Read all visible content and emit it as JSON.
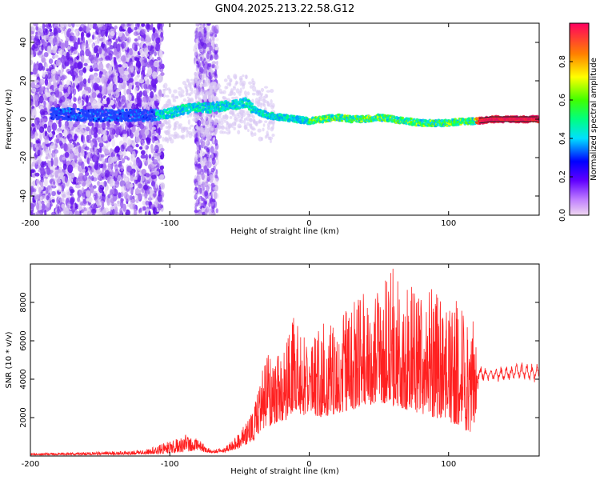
{
  "title": "GN04.2025.213.22.58.G12",
  "chart_data": [
    {
      "type": "heatmap",
      "xlabel": "Height of straight line (km)",
      "ylabel": "Frequency (Hz)",
      "xlim": [
        -200,
        165
      ],
      "ylim": [
        -50,
        50
      ],
      "x_ticks": [
        -200,
        -100,
        0,
        100
      ],
      "y_ticks": [
        -40,
        -20,
        0,
        20,
        40
      ],
      "ridge": {
        "x": [
          -200,
          -180,
          -160,
          -140,
          -120,
          -110,
          -100,
          -90,
          -80,
          -70,
          -60,
          -50,
          -45,
          -40,
          -30,
          -20,
          -10,
          0,
          10,
          20,
          30,
          40,
          50,
          60,
          70,
          80,
          90,
          100,
          110,
          120,
          130,
          140,
          150,
          165
        ],
        "y": [
          2,
          3,
          2,
          2,
          2,
          2,
          3,
          5,
          6,
          6,
          7,
          8,
          9,
          5,
          2,
          1,
          0,
          -1,
          0,
          1,
          0,
          0,
          1,
          0,
          -1,
          -2,
          -2,
          -2,
          -1,
          -1,
          0,
          0,
          0,
          0
        ]
      },
      "colorbar": {
        "label": "Normalized spectral amplitude",
        "ticks": [
          0.0,
          0.2,
          0.4,
          0.6,
          0.8
        ],
        "range": [
          0,
          1
        ]
      }
    },
    {
      "type": "line",
      "xlabel": "Height of straight line (km)",
      "ylabel": "SNR (10 * v/v)",
      "xlim": [
        -200,
        165
      ],
      "ylim": [
        0,
        10000
      ],
      "x_ticks": [
        -200,
        -100,
        0,
        100
      ],
      "y_ticks": [
        2000,
        4000,
        6000,
        8000
      ],
      "color": "#ff2020",
      "envelope": {
        "x": [
          -200,
          -160,
          -120,
          -110,
          -100,
          -90,
          -80,
          -75,
          -70,
          -60,
          -50,
          -40,
          -35,
          -30,
          -20,
          -10,
          0,
          10,
          20,
          30,
          40,
          50,
          60,
          70,
          80,
          90,
          100,
          110,
          118,
          122,
          130,
          140,
          150,
          165
        ],
        "low": [
          50,
          50,
          80,
          100,
          150,
          200,
          300,
          200,
          150,
          200,
          400,
          800,
          1200,
          1500,
          1800,
          2000,
          2200,
          2000,
          2200,
          2400,
          2600,
          2800,
          2600,
          2400,
          2200,
          2000,
          1800,
          1500,
          1000,
          3800,
          3900,
          3800,
          3900,
          3800
        ],
        "high": [
          150,
          200,
          300,
          500,
          800,
          1200,
          1000,
          600,
          300,
          500,
          1200,
          2500,
          4000,
          5500,
          5200,
          7500,
          5800,
          7000,
          6800,
          8000,
          8500,
          9000,
          9800,
          9800,
          8800,
          9000,
          8000,
          8500,
          7000,
          4800,
          4600,
          4700,
          4900,
          4800
        ]
      }
    }
  ]
}
